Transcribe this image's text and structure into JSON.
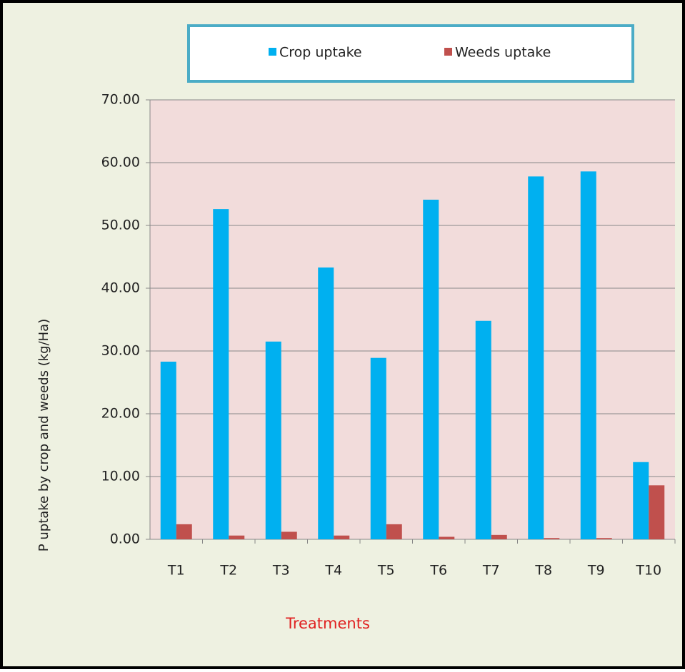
{
  "chart_data": {
    "type": "bar",
    "x_label": "Treatments",
    "y_label": "P  uptake by crop and weeds (kg/Ha)",
    "categories": [
      "T1",
      "T2",
      "T3",
      "T4",
      "T5",
      "T6",
      "T7",
      "T8",
      "T9",
      "T10"
    ],
    "series": [
      {
        "name": "Crop uptake",
        "color": "#00b0f0",
        "values": [
          28.3,
          52.6,
          31.5,
          43.3,
          28.9,
          54.1,
          34.8,
          57.8,
          58.6,
          12.3
        ]
      },
      {
        "name": "Weeds uptake",
        "color": "#c0504d",
        "values": [
          2.4,
          0.6,
          1.2,
          0.6,
          2.4,
          0.4,
          0.7,
          0.2,
          0.2,
          8.6
        ]
      }
    ],
    "ylim": [
      0,
      70
    ],
    "yticks": [
      {
        "value": 0,
        "label": "0.00"
      },
      {
        "value": 10,
        "label": "10.00"
      },
      {
        "value": 20,
        "label": "20.00"
      },
      {
        "value": 30,
        "label": "30.00"
      },
      {
        "value": 40,
        "label": "40.00"
      },
      {
        "value": 50,
        "label": "50.00"
      },
      {
        "value": 60,
        "label": "60.00"
      },
      {
        "value": 70,
        "label": "70.00"
      }
    ],
    "grid": true,
    "legend": "top"
  }
}
